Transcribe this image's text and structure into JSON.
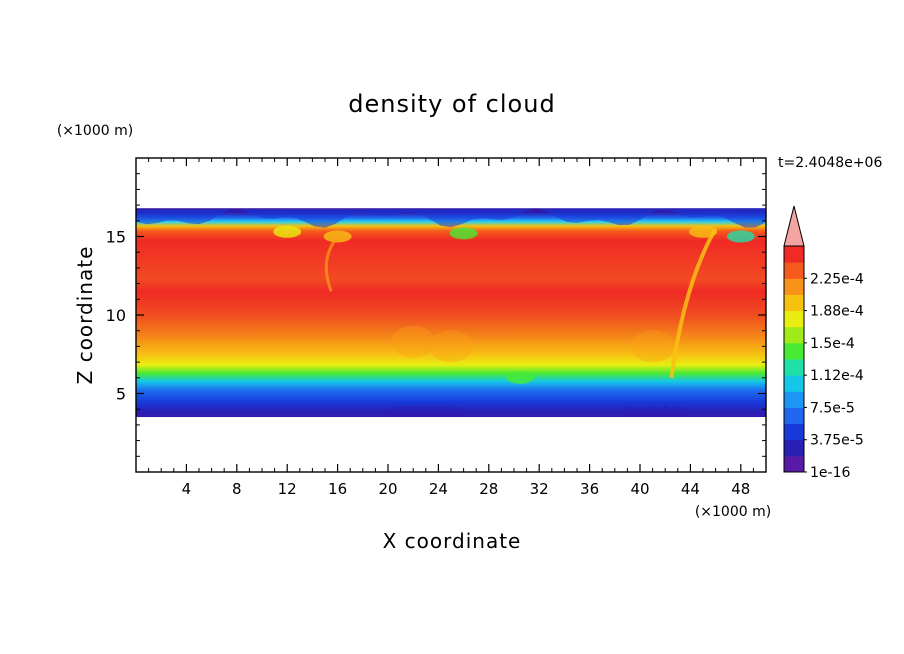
{
  "chart_data": {
    "type": "heatmap",
    "title": "density of cloud",
    "xlabel": "X coordinate",
    "ylabel": "Z coordinate",
    "x_unit": "(×1000 m)",
    "y_unit": "(×1000 m)",
    "time_label": "t=2.4048e+06",
    "xlim": [
      0,
      50
    ],
    "ylim": [
      0,
      20
    ],
    "x_ticks": [
      "4",
      "8",
      "12",
      "16",
      "20",
      "24",
      "28",
      "32",
      "36",
      "40",
      "44",
      "48"
    ],
    "y_ticks": [
      "5",
      "10",
      "15"
    ],
    "colorbar": {
      "labels": [
        "1e-16",
        "3.75e-5",
        "7.5e-5",
        "1.12e-4",
        "1.5e-4",
        "1.88e-4",
        "2.25e-4"
      ],
      "levels": [
        0,
        1.875e-05,
        3.75e-05,
        5.625e-05,
        7.5e-05,
        9.375e-05,
        0.000112,
        0.000131,
        0.00015,
        0.000169,
        0.000188,
        0.000206,
        0.000225,
        0.000244
      ],
      "colors": [
        "#5a1aa8",
        "#2a1fb5",
        "#1838d8",
        "#1f66f0",
        "#1c95f5",
        "#14c7e8",
        "#1fe0a8",
        "#48ea32",
        "#a0ea18",
        "#eaee10",
        "#f5c210",
        "#f89218",
        "#f55a1c",
        "#f02a24"
      ],
      "extend_color": "#f4a3a3"
    },
    "cloud_layer": {
      "base_km": 3.5,
      "top_km": 16.8,
      "core_range_km": [
        8,
        14
      ]
    }
  }
}
